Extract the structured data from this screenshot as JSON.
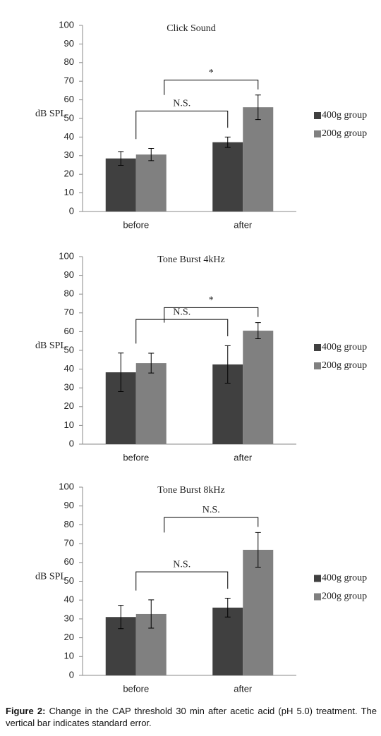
{
  "chart_data": [
    {
      "type": "bar",
      "title": "Click Sound",
      "y_label": "dB SPL",
      "categories": [
        "before",
        "after"
      ],
      "series": [
        {
          "name": "400g group",
          "color": "#404040",
          "values": [
            28.5,
            37.2
          ],
          "errors": [
            3.7,
            2.8
          ]
        },
        {
          "name": "200g group",
          "color": "#808080",
          "values": [
            30.6,
            56
          ],
          "errors": [
            3.3,
            6.6
          ]
        }
      ],
      "ylim": [
        0,
        100
      ],
      "yticks": [
        0,
        10,
        20,
        30,
        40,
        50,
        60,
        70,
        80,
        90,
        100
      ],
      "annotations": [
        "N.S.",
        "*"
      ]
    },
    {
      "type": "bar",
      "title": "Tone Burst 4kHz",
      "y_label": "dB SPL",
      "categories": [
        "before",
        "after"
      ],
      "series": [
        {
          "name": "400g group",
          "color": "#404040",
          "values": [
            38.3,
            42.5
          ],
          "errors": [
            10.3,
            10
          ]
        },
        {
          "name": "200g group",
          "color": "#808080",
          "values": [
            43.2,
            60.5
          ],
          "errors": [
            5.3,
            4.3
          ]
        }
      ],
      "ylim": [
        0,
        100
      ],
      "yticks": [
        0,
        10,
        20,
        30,
        40,
        50,
        60,
        70,
        80,
        90,
        100
      ],
      "annotations": [
        "N.S.",
        "*"
      ]
    },
    {
      "type": "bar",
      "title": "Tone Burst 8kHz",
      "y_label": "dB SPL",
      "categories": [
        "before",
        "after"
      ],
      "series": [
        {
          "name": "400g group",
          "color": "#404040",
          "values": [
            31,
            36
          ],
          "errors": [
            6.2,
            5
          ]
        },
        {
          "name": "200g group",
          "color": "#808080",
          "values": [
            32.6,
            66.7
          ],
          "errors": [
            7.5,
            9.2
          ]
        }
      ],
      "ylim": [
        0,
        100
      ],
      "yticks": [
        0,
        10,
        20,
        30,
        40,
        50,
        60,
        70,
        80,
        90,
        100
      ],
      "annotations": [
        "N.S.",
        "N.S."
      ]
    }
  ],
  "caption": {
    "label": "Figure 2:",
    "text": "Change in the CAP threshold 30 min after acetic acid (pH 5.0) treatment. The vertical bar indicates standard error."
  }
}
